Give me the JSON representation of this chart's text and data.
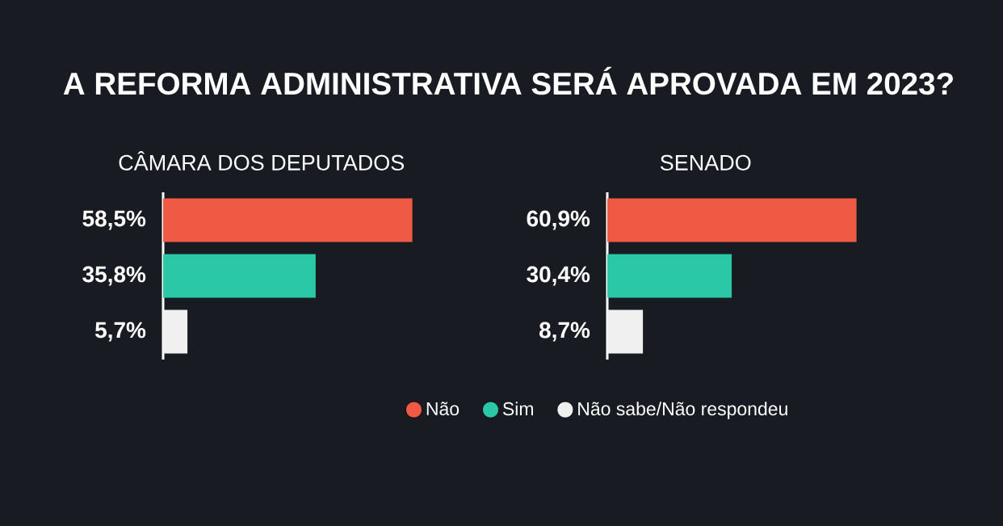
{
  "chart_data": [
    {
      "type": "bar",
      "orientation": "horizontal",
      "title": "A REFORMA ADMINISTRATIVA SERÁ APROVADA EM 2023?",
      "subtitle": "CÂMARA DOS DEPUTADOS",
      "categories": [
        null
      ],
      "legend": false,
      "series": [
        {
          "color": "#ee5a44",
          "values": [
            58.5
          ],
          "value_labels": [
            "58,5%"
          ]
        },
        {
          "color": "#2bc8a8",
          "values": [
            35.8
          ],
          "value_labels": [
            "35,8%"
          ]
        },
        {
          "color": "#f0f0f0",
          "values": [
            5.7
          ],
          "value_labels": [
            "5,7%"
          ]
        }
      ]
    },
    {
      "type": "bar",
      "orientation": "horizontal",
      "subtitle": "SENADO",
      "categories": [
        null
      ],
      "legend": "bottom",
      "series": [
        {
          "name": "Não",
          "color": "#ee5a44",
          "values": [
            60.9
          ],
          "value_labels": [
            "60,9%"
          ]
        },
        {
          "name": "Sim",
          "color": "#2bc8a8",
          "values": [
            30.4
          ],
          "value_labels": [
            "30,4%"
          ]
        },
        {
          "name": "Não sabe/Não respondeu",
          "color": "#f0f0f0",
          "values": [
            8.7
          ],
          "value_labels": [
            "8,7%"
          ]
        }
      ]
    }
  ]
}
